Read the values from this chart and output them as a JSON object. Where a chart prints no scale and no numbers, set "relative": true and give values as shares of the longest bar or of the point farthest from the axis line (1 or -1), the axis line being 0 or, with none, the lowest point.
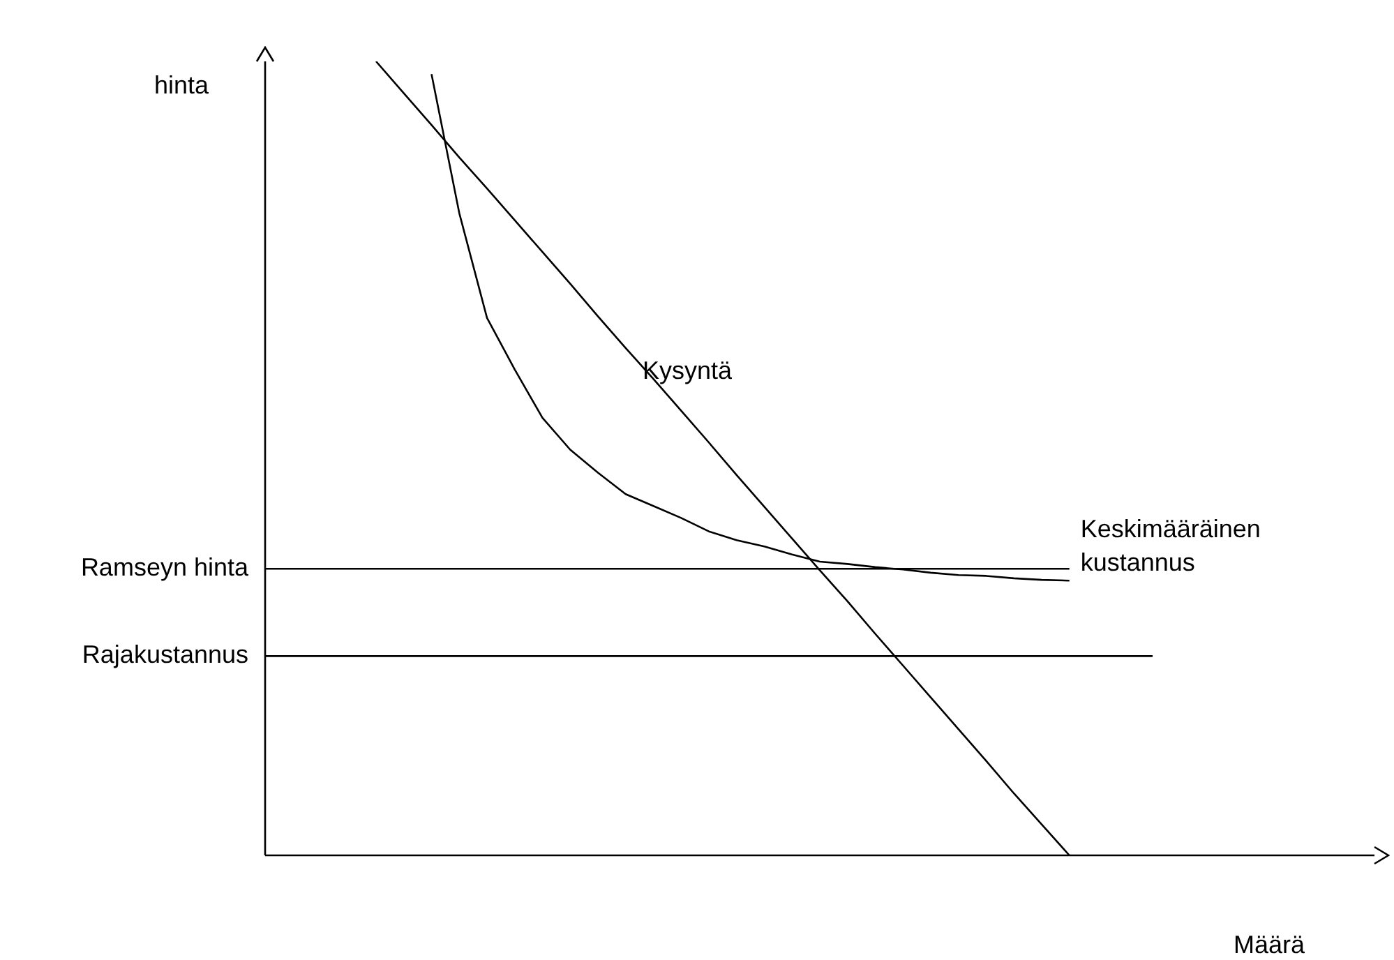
{
  "chart_data": {
    "type": "line",
    "relative": true,
    "xlabel": "Määrä",
    "ylabel": "hinta",
    "legend": false,
    "marker": "none",
    "line_style": "solid",
    "categories": [
      null,
      null,
      null,
      null,
      null,
      null,
      null,
      null,
      null,
      null,
      null,
      null,
      null,
      null,
      null,
      null,
      null,
      null,
      null,
      null,
      null,
      null,
      null,
      null,
      null,
      null,
      null,
      null,
      null,
      null,
      null,
      null,
      null,
      null,
      null,
      null,
      null,
      null,
      null,
      null,
      null
    ],
    "series": [
      {
        "name": "Kysyntä",
        "color": "#000000",
        "values": [
          null,
          null,
          null,
          null,
          1,
          0.96,
          0.92,
          0.879,
          0.84,
          0.8,
          0.76,
          0.72,
          0.679,
          0.639,
          0.6,
          0.56,
          0.52,
          0.479,
          0.439,
          0.399,
          0.359,
          0.32,
          0.279,
          0.239,
          0.199,
          0.159,
          0.119,
          0.078,
          0.039,
          0,
          null,
          null,
          null,
          null,
          null,
          null,
          null,
          null,
          null,
          null,
          null
        ]
      },
      {
        "name": "Keskimääräinen kustannus",
        "color": "#000000",
        "values": [
          null,
          null,
          null,
          null,
          null,
          null,
          0.984,
          0.809,
          0.677,
          0.612,
          0.551,
          0.511,
          0.482,
          0.455,
          0.44,
          0.425,
          0.408,
          0.397,
          0.389,
          0.379,
          0.37,
          0.367,
          0.363,
          0.36,
          0.356,
          0.353,
          0.352,
          0.349,
          0.347,
          0.346,
          null,
          null,
          null,
          null,
          null,
          null,
          null,
          null,
          null,
          null,
          null
        ]
      },
      {
        "name": "Ramseyn hinta",
        "color": "#000000",
        "values": [
          0.361,
          0.361,
          0.361,
          0.361,
          0.361,
          0.361,
          0.361,
          0.361,
          0.361,
          0.361,
          0.361,
          0.361,
          0.361,
          0.361,
          0.361,
          0.361,
          0.361,
          0.361,
          0.361,
          0.361,
          0.361,
          0.361,
          0.361,
          0.361,
          0.361,
          0.361,
          0.361,
          0.361,
          0.361,
          0.361,
          null,
          null,
          null,
          null,
          null,
          null,
          null,
          null,
          null,
          null,
          null
        ]
      },
      {
        "name": "Rajakustannus",
        "color": "#000000",
        "values": [
          0.251,
          0.251,
          0.251,
          0.251,
          0.251,
          0.251,
          0.251,
          0.251,
          0.251,
          0.251,
          0.251,
          0.251,
          0.251,
          0.251,
          0.251,
          0.251,
          0.251,
          0.251,
          0.251,
          0.251,
          0.251,
          0.251,
          0.251,
          0.251,
          0.251,
          0.251,
          0.251,
          0.251,
          0.251,
          0.251,
          0.251,
          0.251,
          0.251,
          null,
          null,
          null,
          null,
          null,
          null,
          null,
          null
        ]
      }
    ]
  }
}
